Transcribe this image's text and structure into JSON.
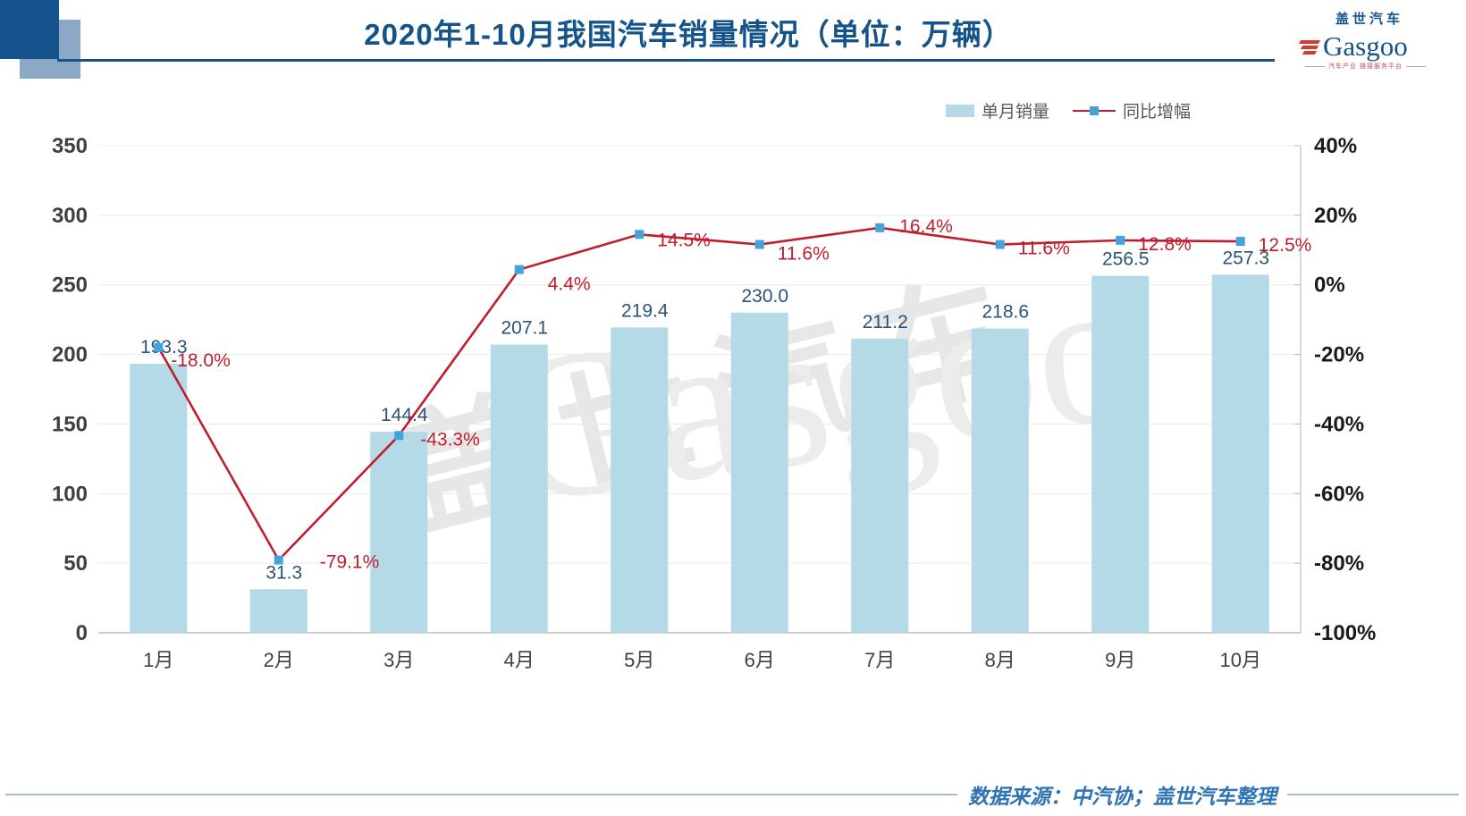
{
  "header": {
    "title": "2020年1-10月我国汽车销量情况（单位：万辆）",
    "logo_cn": "盖世汽车",
    "logo_en": "Gasgoo",
    "logo_tagline": "汽车产业 链接服务平台"
  },
  "legend": {
    "bar_label": "单月销量",
    "line_label": "同比增幅"
  },
  "watermark": {
    "text_cn": "盖世汽车",
    "text_en": "Gasgoo"
  },
  "footer": {
    "source_text": "数据来源：中汽协；盖世汽车整理"
  },
  "colors": {
    "title": "#15538B",
    "bar": "#B3DAE6",
    "line": "#BE1E2D",
    "marker": "#41A5DC",
    "bar_label": "#2B5277",
    "axis_text": "#404040",
    "legend_text": "#595959",
    "grid": "#E9E9E9",
    "axis_line": "#BFBFBF",
    "footer_text": "#2E74B5",
    "footer_line": "#A5BEC8",
    "deco_dark": "#14538B",
    "deco_light": "#8CA8C6"
  },
  "chart_data": {
    "type": "combo-bar-line",
    "title": "2020年1-10月我国汽车销量情况（单位：万辆）",
    "categories": [
      "1月",
      "2月",
      "3月",
      "4月",
      "5月",
      "6月",
      "7月",
      "8月",
      "9月",
      "10月"
    ],
    "series": [
      {
        "name": "单月销量",
        "type": "bar",
        "axis": "left",
        "unit": "万辆",
        "values": [
          193.3,
          31.3,
          144.4,
          207.1,
          219.4,
          230.0,
          211.2,
          218.6,
          256.5,
          257.3
        ]
      },
      {
        "name": "同比增幅",
        "type": "line",
        "axis": "right",
        "unit": "%",
        "values": [
          -18.0,
          -79.1,
          -43.3,
          4.4,
          14.5,
          11.6,
          16.4,
          11.6,
          12.8,
          12.5
        ]
      }
    ],
    "left_axis": {
      "ticks": [
        350,
        300,
        250,
        200,
        150,
        100,
        50,
        0
      ],
      "range": [
        0,
        350
      ]
    },
    "right_axis": {
      "ticks": [
        "40%",
        "20%",
        "0%",
        "-20%",
        "-40%",
        "-60%",
        "-80%",
        "-100%"
      ],
      "range": [
        -100,
        40
      ]
    },
    "grid": true,
    "legend_position": "top-right"
  }
}
